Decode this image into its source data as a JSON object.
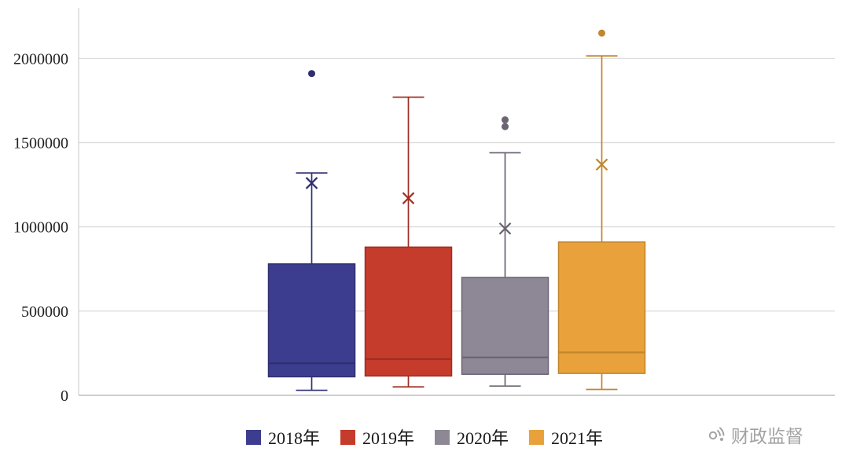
{
  "chart_data": {
    "type": "boxplot",
    "title": "",
    "xlabel": "",
    "ylabel": "",
    "ylim": [
      0,
      2300000
    ],
    "yticks": [
      0,
      500000,
      1000000,
      1500000,
      2000000
    ],
    "grid": true,
    "legend_position": "bottom",
    "series": [
      {
        "name": "2018年",
        "color": "#3D3D8F",
        "line": "#2F2F70",
        "min": 30000,
        "q1": 110000,
        "median": 190000,
        "q3": 780000,
        "max": 1320000,
        "mean": 1260000,
        "outliers": [
          1910000
        ]
      },
      {
        "name": "2019年",
        "color": "#C53B2C",
        "line": "#9E2F23",
        "min": 50000,
        "q1": 115000,
        "median": 215000,
        "q3": 880000,
        "max": 1770000,
        "mean": 1170000,
        "outliers": []
      },
      {
        "name": "2020年",
        "color": "#8E8795",
        "line": "#6B6472",
        "min": 55000,
        "q1": 125000,
        "median": 225000,
        "q3": 700000,
        "max": 1440000,
        "mean": 990000,
        "outliers": [
          1595000,
          1635000
        ]
      },
      {
        "name": "2021年",
        "color": "#E9A23B",
        "line": "#C2862D",
        "min": 35000,
        "q1": 130000,
        "median": 255000,
        "q3": 910000,
        "max": 2015000,
        "mean": 1370000,
        "outliers": [
          2150000
        ]
      }
    ]
  },
  "watermark": {
    "label": "财政监督"
  }
}
